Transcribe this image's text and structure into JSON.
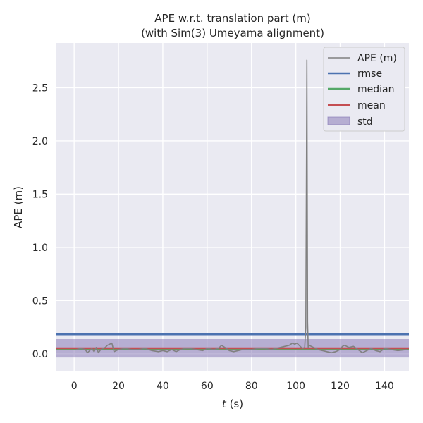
{
  "chart_data": {
    "type": "line",
    "title": [
      "APE w.r.t. translation part (m)",
      "(with Sim(3) Umeyama alignment)"
    ],
    "xlabel_var": "t",
    "xlabel_unit": " (s)",
    "ylabel": "APE (m)",
    "xlim": [
      -8,
      151
    ],
    "ylim": [
      -0.16,
      2.92
    ],
    "xticks": [
      0,
      20,
      40,
      60,
      80,
      100,
      120,
      140
    ],
    "yticks": [
      0.0,
      0.5,
      1.0,
      1.5,
      2.0,
      2.5
    ],
    "ytick_labels": [
      "0.0",
      "0.5",
      "1.0",
      "1.5",
      "2.0",
      "2.5"
    ],
    "grid": true,
    "legend_position": "top-right",
    "legend": [
      "APE (m)",
      "rmse",
      "median",
      "mean",
      "std"
    ],
    "series": [
      {
        "name": "APE (m)",
        "color": "#808080",
        "x": [
          1.0,
          3.0,
          5.0,
          6.0,
          7.0,
          8.0,
          9.0,
          10.0,
          11.0,
          12.0,
          13.0,
          14.0,
          15.0,
          16.0,
          17.0,
          18.0,
          20.0,
          23.0,
          26.0,
          29.0,
          32.0,
          35.0,
          38.0,
          40.0,
          42.0,
          44.0,
          46.0,
          48.0,
          50.0,
          52.0,
          55.0,
          58.0,
          60.0,
          63.0,
          65.0,
          66.5,
          68.0,
          70.0,
          72.0,
          74.0,
          76.0,
          78.0,
          80.0,
          83.0,
          86.0,
          89.0,
          91.0,
          93.0,
          95.0,
          97.0,
          98.5,
          99.5,
          100.5,
          101.5,
          103.0,
          104.0,
          104.5,
          105.0,
          105.3,
          105.6,
          106.0,
          107.0,
          108.0,
          110.0,
          112.0,
          114.0,
          116.0,
          118.0,
          120.0,
          121.0,
          122.0,
          124.0,
          126.0,
          128.0,
          130.0,
          132.0,
          134.0,
          136.0,
          138.0,
          140.0,
          143.0,
          146.0,
          150.0
        ],
        "y": [
          0.04,
          0.05,
          0.04,
          0.01,
          0.03,
          0.05,
          0.02,
          0.06,
          0.01,
          0.04,
          0.05,
          0.06,
          0.08,
          0.09,
          0.1,
          0.02,
          0.04,
          0.05,
          0.04,
          0.04,
          0.05,
          0.03,
          0.02,
          0.03,
          0.02,
          0.04,
          0.02,
          0.04,
          0.05,
          0.05,
          0.04,
          0.03,
          0.05,
          0.04,
          0.05,
          0.08,
          0.06,
          0.03,
          0.02,
          0.03,
          0.04,
          0.04,
          0.04,
          0.05,
          0.05,
          0.04,
          0.05,
          0.06,
          0.07,
          0.08,
          0.1,
          0.09,
          0.1,
          0.08,
          0.05,
          0.06,
          0.25,
          2.76,
          0.3,
          0.06,
          0.08,
          0.07,
          0.06,
          0.04,
          0.03,
          0.02,
          0.01,
          0.02,
          0.04,
          0.07,
          0.08,
          0.06,
          0.07,
          0.04,
          0.01,
          0.03,
          0.05,
          0.03,
          0.02,
          0.05,
          0.04,
          0.03,
          0.04
        ]
      },
      {
        "name": "rmse",
        "color": "#4c72b0",
        "value": 0.183
      },
      {
        "name": "median",
        "color": "#55a868",
        "value": 0.045
      },
      {
        "name": "mean",
        "color": "#c44e52",
        "value": 0.052
      },
      {
        "name": "std",
        "color": "#8172b2",
        "range": [
          -0.035,
          0.138
        ]
      }
    ]
  }
}
